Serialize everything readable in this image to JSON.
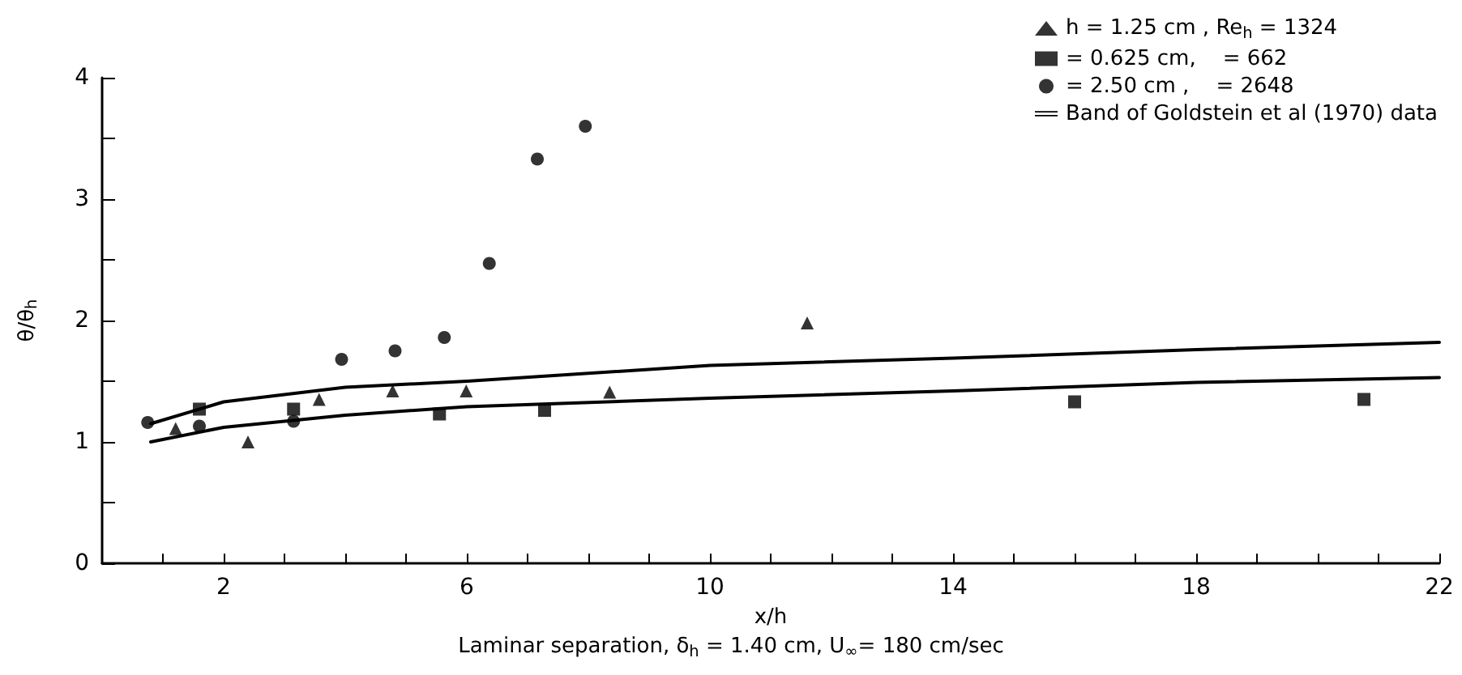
{
  "chart_data": {
    "type": "scatter",
    "xlabel": "x/h",
    "ylabel": "θ/θ$_{h}$",
    "annotations": [
      "Laminar separation, δ$_{h}$ = 1.40 cm, U$_{∞}$= 180 cm/sec"
    ],
    "xlim": [
      0,
      22
    ],
    "xticks": [
      {
        "value": 1,
        "label": null
      },
      2,
      {
        "value": 3,
        "label": null
      },
      {
        "value": 4,
        "label": null
      },
      {
        "value": 5,
        "label": null
      },
      6,
      {
        "value": 7,
        "label": null
      },
      {
        "value": 8,
        "label": null
      },
      {
        "value": 9,
        "label": null
      },
      10,
      {
        "value": 11,
        "label": null
      },
      {
        "value": 12,
        "label": null
      },
      {
        "value": 13,
        "label": null
      },
      14,
      {
        "value": 15,
        "label": null
      },
      {
        "value": 16,
        "label": null
      },
      {
        "value": 17,
        "label": null
      },
      18,
      {
        "value": 19,
        "label": null
      },
      {
        "value": 20,
        "label": null
      },
      {
        "value": 21,
        "label": null
      },
      22
    ],
    "ylim": [
      0,
      4
    ],
    "yticks": [
      0,
      {
        "value": 0.5,
        "label": null
      },
      1,
      {
        "value": 1.5,
        "label": null
      },
      2,
      {
        "value": 2.5,
        "label": null
      },
      3,
      {
        "value": 3.5,
        "label": null
      },
      4
    ],
    "grid": false,
    "legend": "top right",
    "series": [
      {
        "name": "h = 1.25 cm , Re$_{h}$ = 1324",
        "type": "scatter",
        "marker": "triangle",
        "color": "#000000",
        "x": [
          1.21,
          2.4,
          3.57,
          4.78,
          5.99,
          8.35,
          11.6
        ],
        "values": [
          1.11,
          1.0,
          1.35,
          1.42,
          1.42,
          1.41,
          1.98
        ]
      },
      {
        "name": "= 0.625 cm,    = 662",
        "type": "scatter",
        "marker": "square",
        "color": "#000000",
        "x": [
          1.6,
          3.15,
          5.55,
          7.28,
          16.0,
          20.76
        ],
        "values": [
          1.27,
          1.27,
          1.23,
          1.26,
          1.33,
          1.35
        ]
      },
      {
        "name": "= 2.50 cm ,    = 2648",
        "type": "scatter",
        "marker": "circle",
        "color": "#000000",
        "x": [
          0.75,
          1.6,
          3.15,
          3.94,
          4.82,
          5.63,
          6.37,
          7.16,
          7.95
        ],
        "values": [
          1.16,
          1.13,
          1.17,
          1.68,
          1.75,
          1.86,
          2.47,
          3.33,
          3.6
        ]
      },
      {
        "name": "Band of Goldstein et al (1970) data",
        "type": "line",
        "marker": "none",
        "line_style": "solid",
        "color": "#000000",
        "x": [
          0.8,
          2,
          4,
          6,
          10,
          14,
          18,
          22
        ],
        "values": [
          1.15,
          1.33,
          1.45,
          1.5,
          1.63,
          1.69,
          1.76,
          1.82
        ]
      },
      {
        "type": "line",
        "marker": "none",
        "line_style": "solid",
        "color": "#000000",
        "x": [
          0.8,
          2,
          4,
          6,
          10,
          14,
          18,
          22
        ],
        "values": [
          1.0,
          1.12,
          1.22,
          1.29,
          1.36,
          1.42,
          1.49,
          1.53
        ]
      }
    ]
  }
}
